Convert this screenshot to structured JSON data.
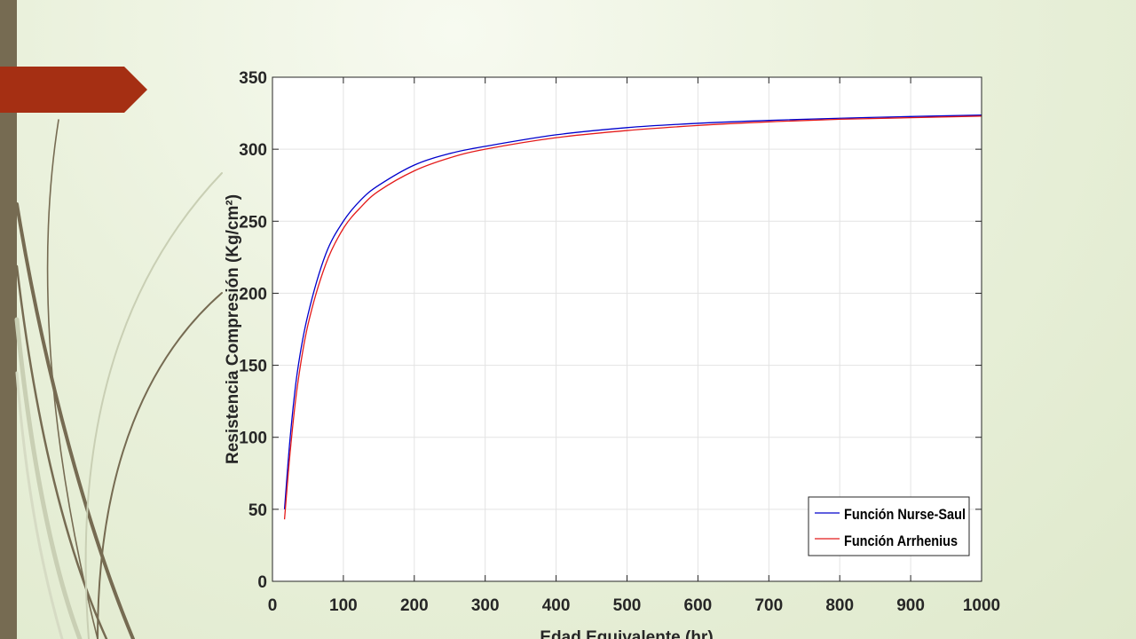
{
  "slide": {
    "accent_color": "#a52f13",
    "sidebar_color": "#766b52"
  },
  "chart_data": {
    "type": "line",
    "title": "",
    "xlabel": "Edad Equivalente (hr)",
    "ylabel": "Resistencia Compresión (Kg/cm²)",
    "xlim": [
      0,
      1000
    ],
    "ylim": [
      0,
      350
    ],
    "xticks": [
      0,
      100,
      200,
      300,
      400,
      500,
      600,
      700,
      800,
      900,
      1000
    ],
    "yticks": [
      0,
      50,
      100,
      150,
      200,
      250,
      300,
      350
    ],
    "grid": true,
    "legend_position": "bottom-right",
    "series": [
      {
        "name": "Función Nurse-Saul",
        "color": "#0000cc",
        "x": [
          17,
          25,
          35,
          50,
          75,
          100,
          125,
          150,
          200,
          250,
          300,
          400,
          500,
          600,
          700,
          800,
          900,
          1000
        ],
        "y": [
          50,
          100,
          145,
          185,
          227,
          250,
          265,
          275,
          289,
          297,
          302,
          310,
          315,
          318,
          320,
          321.5,
          322.7,
          323.7
        ]
      },
      {
        "name": "Función Arrhenius",
        "color": "#e41a1a",
        "x": [
          17,
          25,
          35,
          50,
          75,
          100,
          125,
          150,
          200,
          250,
          300,
          400,
          500,
          600,
          700,
          800,
          900,
          1000
        ],
        "y": [
          43,
          90,
          135,
          178,
          220,
          245,
          260,
          271,
          285,
          294,
          300,
          308,
          313,
          316.5,
          319,
          320.8,
          321.9,
          323
        ]
      }
    ]
  }
}
